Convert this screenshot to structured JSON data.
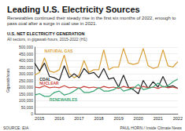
{
  "chart_data": {
    "type": "line",
    "title": "Leading U.S. Electricity Sources",
    "subtitle": "Renewables continued their steady rise in the first six months of 2022, enough to pass coal after a surge in coal use in 2021.",
    "section_title": "U.S. NET ELECTRICITY GENERATION",
    "section_subtitle": "All sectors, in gigawatt-hours, 2015-2022 (H1)",
    "y_label": "Gigawatt-hours",
    "source": "SOURCE: EIA",
    "credit": "PAUL HORN / Inside Climate News",
    "categories": [
      null,
      "2015",
      null,
      null,
      null,
      "2016",
      null,
      null,
      null,
      "2017",
      null,
      null,
      null,
      "2018",
      null,
      null,
      null,
      "2019",
      null,
      null,
      null,
      "2020",
      null,
      null,
      null,
      "2021",
      null,
      null,
      null,
      "2022"
    ],
    "series": [
      {
        "name": "NATURAL GAS",
        "color": "#d9a03a",
        "values": [
          290000,
          310000,
          420000,
          320000,
          310000,
          330000,
          440000,
          300000,
          270000,
          290000,
          400000,
          310000,
          330000,
          330000,
          480000,
          330000,
          350000,
          350000,
          490000,
          380000,
          370000,
          380000,
          490000,
          360000,
          340000,
          350000,
          480000,
          360000,
          350000,
          390000
        ]
      },
      {
        "name": "COAL",
        "color": "#222222",
        "values": [
          380000,
          320000,
          380000,
          280000,
          270000,
          250000,
          360000,
          270000,
          300000,
          270000,
          340000,
          300000,
          310000,
          270000,
          340000,
          260000,
          270000,
          200000,
          290000,
          200000,
          180000,
          150000,
          250000,
          190000,
          240000,
          200000,
          280000,
          200000,
          210000,
          190000
        ]
      },
      {
        "name": "NUCLEAR",
        "color": "#c8423a",
        "values": [
          200000,
          195000,
          210000,
          195000,
          200000,
          195000,
          210000,
          195000,
          200000,
          190000,
          205000,
          195000,
          200000,
          190000,
          205000,
          195000,
          200000,
          190000,
          205000,
          195000,
          200000,
          190000,
          205000,
          195000,
          200000,
          190000,
          205000,
          195000,
          200000,
          190000
        ]
      },
      {
        "name": "RENEWABLES",
        "color": "#3aa572",
        "values": [
          140000,
          150000,
          130000,
          130000,
          160000,
          170000,
          140000,
          150000,
          170000,
          195000,
          160000,
          160000,
          170000,
          195000,
          170000,
          170000,
          180000,
          205000,
          170000,
          180000,
          190000,
          220000,
          180000,
          190000,
          200000,
          230000,
          200000,
          210000,
          240000,
          260000
        ]
      }
    ],
    "ylim": [
      0,
      500000
    ],
    "yticks": [
      0,
      50000,
      100000,
      150000,
      200000,
      250000,
      300000,
      350000,
      400000,
      450000,
      500000
    ],
    "grid": true
  }
}
